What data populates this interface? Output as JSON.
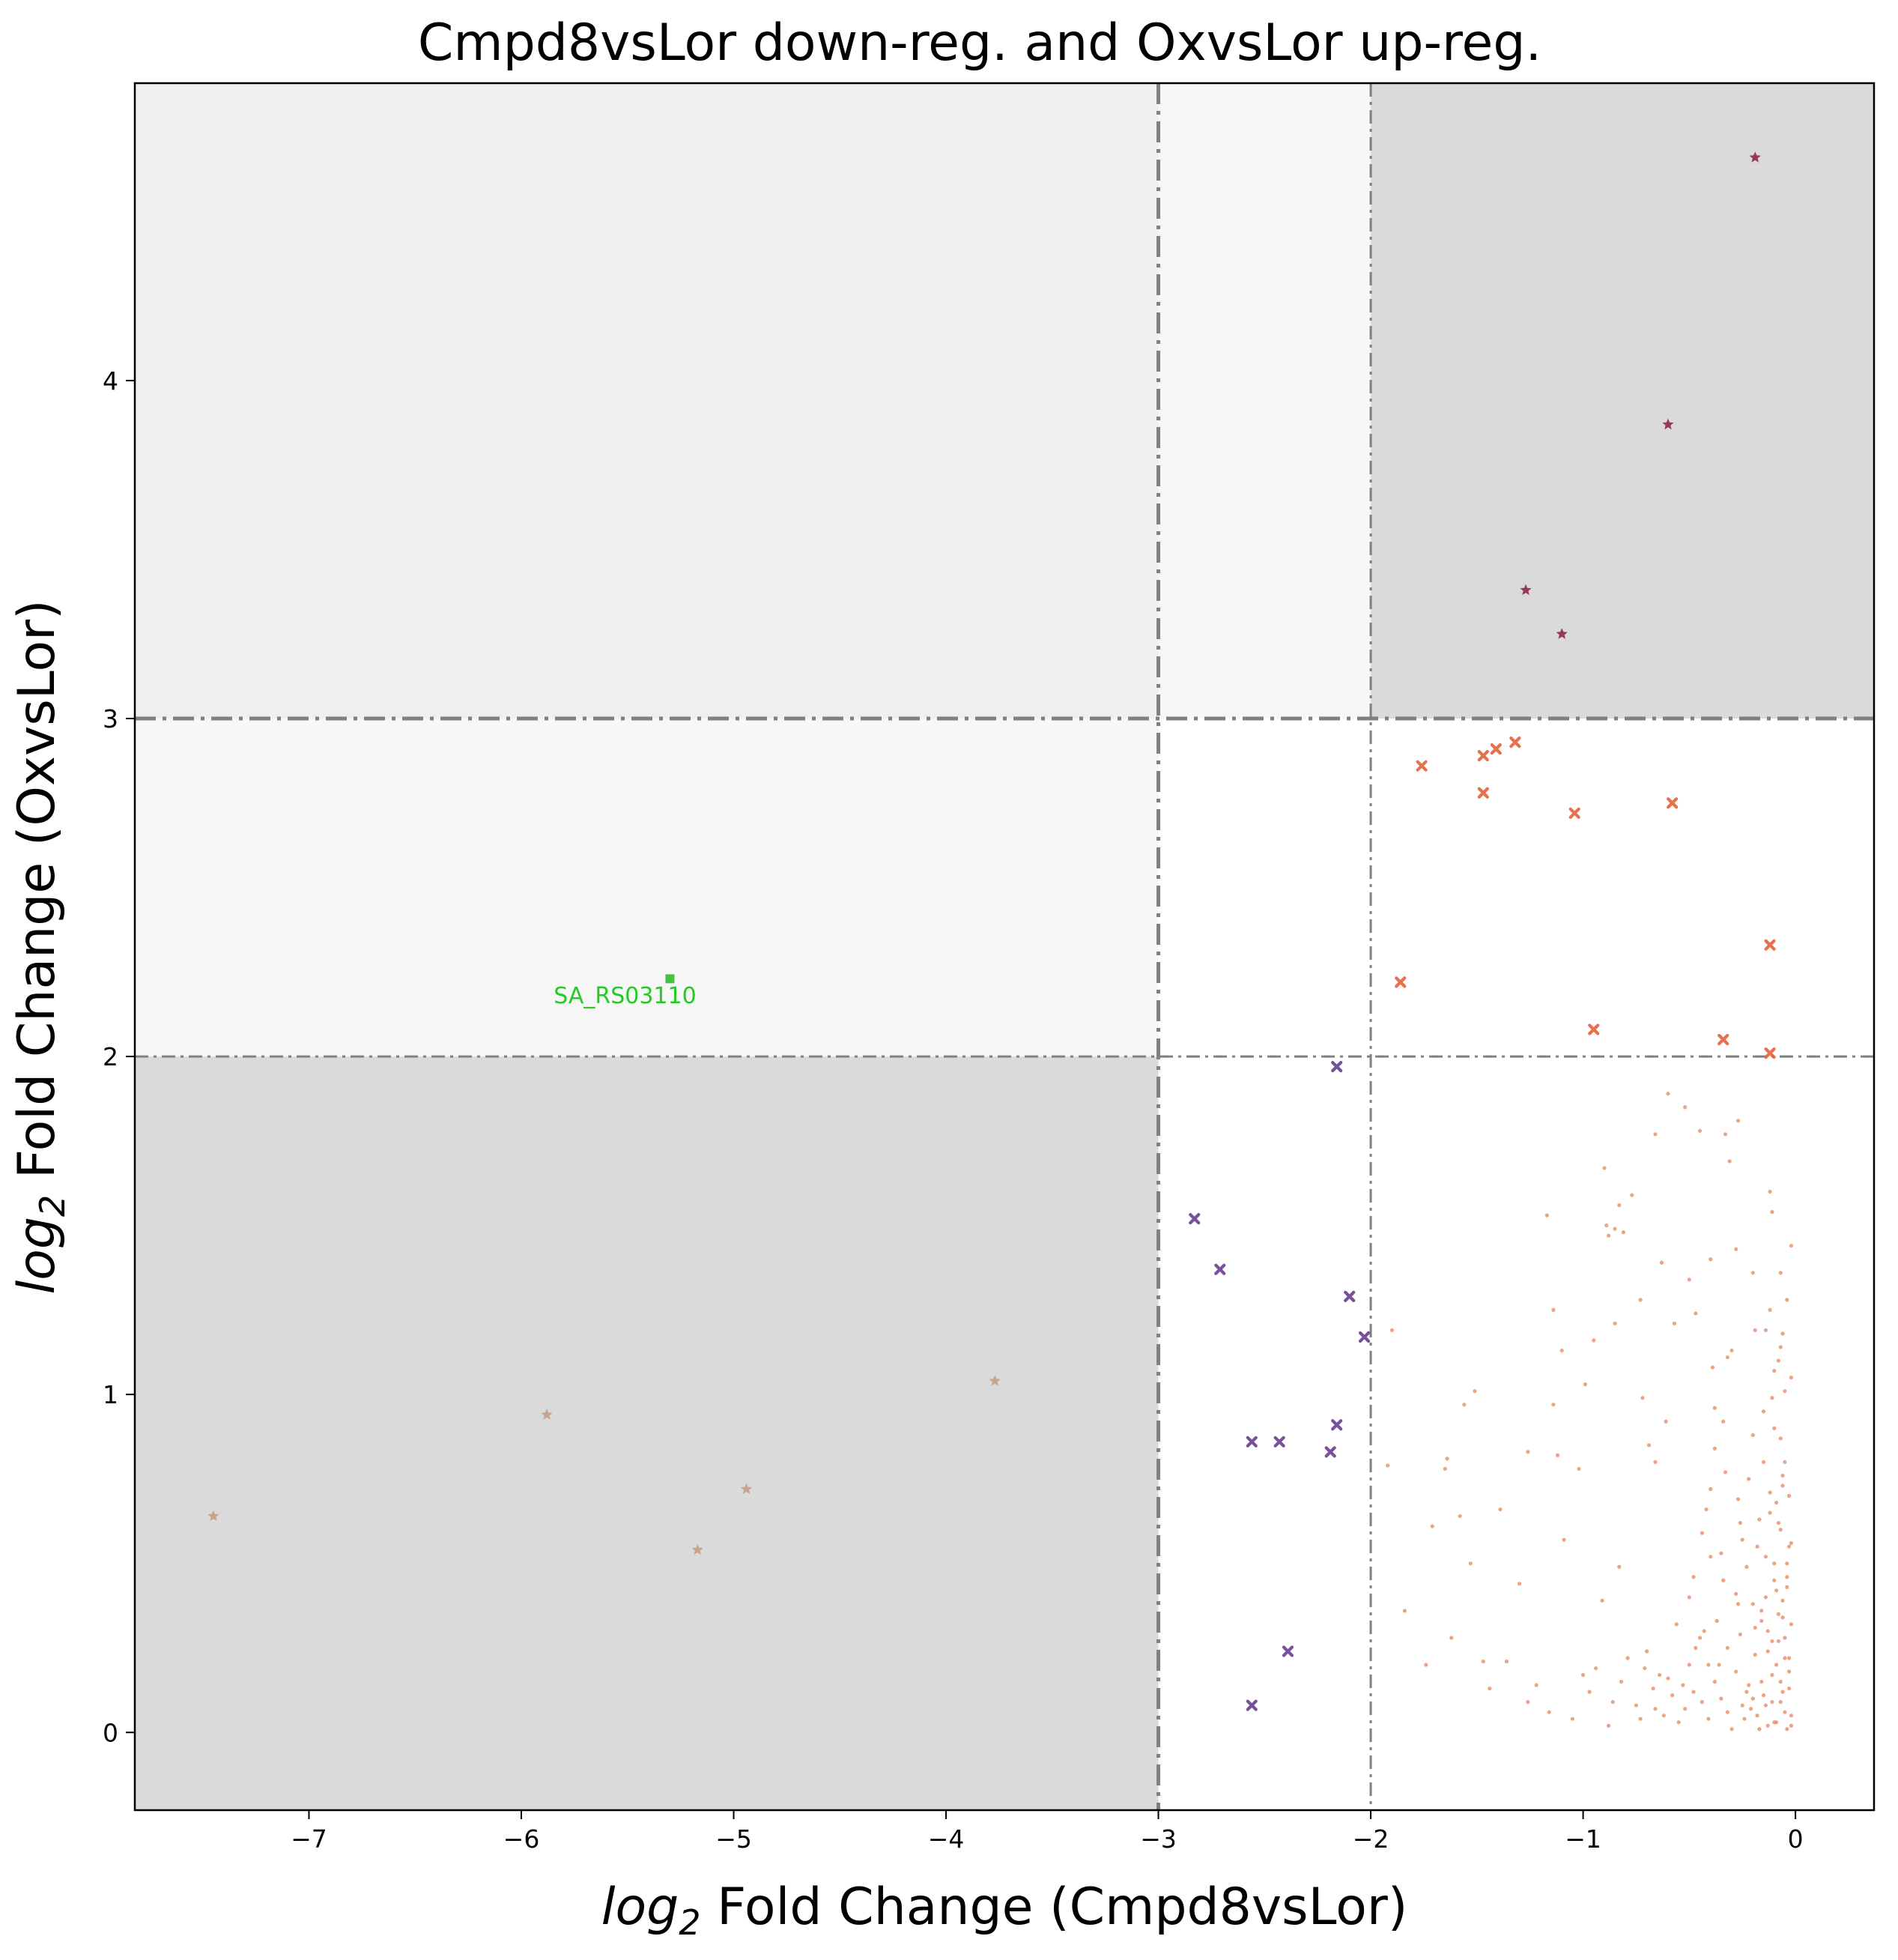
{
  "chart_data": {
    "type": "scatter",
    "title": "Cmpd8vsLor down-reg. and OxvsLor up-reg.",
    "xlabel": {
      "prefix": "log",
      "sub": "2",
      "rest": " Fold Change (Cmpd8vsLor)"
    },
    "ylabel": {
      "prefix": "log",
      "sub": "2",
      "rest": " Fold Change (OxvsLor)"
    },
    "xlim": [
      -7.82,
      0.37
    ],
    "ylim": [
      -0.23,
      4.88
    ],
    "xticks": [
      {
        "value": -7,
        "label": "−7"
      },
      {
        "value": -6,
        "label": "−6"
      },
      {
        "value": -5,
        "label": "−5"
      },
      {
        "value": -4,
        "label": "−4"
      },
      {
        "value": -3,
        "label": "−3"
      },
      {
        "value": -2,
        "label": "−2"
      },
      {
        "value": -1,
        "label": "−1"
      },
      {
        "value": 0,
        "label": "0"
      }
    ],
    "yticks": [
      {
        "value": 0,
        "label": "0"
      },
      {
        "value": 1,
        "label": "1"
      },
      {
        "value": 2,
        "label": "2"
      },
      {
        "value": 3,
        "label": "3"
      },
      {
        "value": 4,
        "label": "4"
      }
    ],
    "grid": false,
    "regions": [
      {
        "x": [
          -7.82,
          -3
        ],
        "y": [
          3,
          4.88
        ],
        "color": "#efefef"
      },
      {
        "x": [
          -3,
          -2
        ],
        "y": [
          3,
          4.88
        ],
        "color": "#f7f7f7"
      },
      {
        "x": [
          -2,
          0.37
        ],
        "y": [
          3,
          4.88
        ],
        "color": "#dadada"
      },
      {
        "x": [
          -7.82,
          -3
        ],
        "y": [
          2,
          3
        ],
        "color": "#f7f7f7"
      },
      {
        "x": [
          -7.82,
          -3
        ],
        "y": [
          -0.23,
          2
        ],
        "color": "#dadada"
      }
    ],
    "thresholds": {
      "vertical": [
        {
          "x": -3,
          "style": "thick"
        },
        {
          "x": -2,
          "style": "thin"
        }
      ],
      "horizontal": [
        {
          "y": 3,
          "style": "thick"
        },
        {
          "y": 2,
          "style": "thin"
        }
      ],
      "color": "#808080"
    },
    "series": [
      {
        "marker": "star",
        "color": "#8b1f3d",
        "points": [
          [
            -0.19,
            4.66
          ],
          [
            -0.6,
            3.87
          ],
          [
            -1.27,
            3.38
          ],
          [
            -1.1,
            3.25
          ]
        ]
      },
      {
        "marker": "x",
        "color": "#e4603a",
        "points": [
          [
            -1.76,
            2.86
          ],
          [
            -1.47,
            2.89
          ],
          [
            -1.41,
            2.91
          ],
          [
            -1.32,
            2.93
          ],
          [
            -1.47,
            2.78
          ],
          [
            -1.04,
            2.72
          ],
          [
            -0.58,
            2.75
          ],
          [
            -0.12,
            2.33
          ],
          [
            -1.86,
            2.22
          ],
          [
            -0.95,
            2.08
          ],
          [
            -0.34,
            2.05
          ],
          [
            -0.12,
            2.01
          ]
        ]
      },
      {
        "marker": "x",
        "color": "#6a3d8f",
        "points": [
          [
            -2.16,
            1.97
          ],
          [
            -2.83,
            1.52
          ],
          [
            -2.71,
            1.37
          ],
          [
            -2.1,
            1.29
          ],
          [
            -2.03,
            1.17
          ],
          [
            -2.16,
            0.91
          ],
          [
            -2.56,
            0.86
          ],
          [
            -2.43,
            0.86
          ],
          [
            -2.19,
            0.83
          ],
          [
            -2.39,
            0.24
          ],
          [
            -2.56,
            0.08
          ]
        ]
      },
      {
        "marker": "star",
        "color": "#c49a7e",
        "points": [
          [
            -7.45,
            0.64
          ],
          [
            -5.88,
            0.94
          ],
          [
            -3.77,
            1.04
          ],
          [
            -4.94,
            0.72
          ],
          [
            -5.17,
            0.54
          ]
        ]
      },
      {
        "marker": "square",
        "color": "#22bb22",
        "points": [
          [
            -5.3,
            2.23
          ]
        ]
      },
      {
        "marker": "dot",
        "color": "#e8865a",
        "points": [
          [
            -0.6,
            1.89
          ],
          [
            -0.52,
            1.85
          ],
          [
            -0.45,
            1.78
          ],
          [
            -0.66,
            1.77
          ],
          [
            -0.33,
            1.77
          ],
          [
            -0.27,
            1.81
          ],
          [
            -0.31,
            1.69
          ],
          [
            -0.9,
            1.67
          ],
          [
            -0.77,
            1.59
          ],
          [
            -0.12,
            1.6
          ],
          [
            -0.83,
            1.56
          ],
          [
            -1.17,
            1.53
          ],
          [
            -0.89,
            1.5
          ],
          [
            -0.85,
            1.49
          ],
          [
            -0.81,
            1.48
          ],
          [
            -0.88,
            1.47
          ],
          [
            -0.11,
            1.54
          ],
          [
            -0.02,
            1.44
          ],
          [
            -0.28,
            1.43
          ],
          [
            -0.4,
            1.4
          ],
          [
            -0.63,
            1.39
          ],
          [
            -0.2,
            1.36
          ],
          [
            -0.07,
            1.36
          ],
          [
            -0.5,
            1.34
          ],
          [
            -0.73,
            1.28
          ],
          [
            -0.04,
            1.28
          ],
          [
            -0.12,
            1.25
          ],
          [
            -1.14,
            1.25
          ],
          [
            -0.47,
            1.24
          ],
          [
            -0.85,
            1.21
          ],
          [
            -0.57,
            1.21
          ],
          [
            -0.19,
            1.19
          ],
          [
            -0.14,
            1.19
          ],
          [
            -0.06,
            1.18
          ],
          [
            -1.9,
            1.19
          ],
          [
            -0.95,
            1.16
          ],
          [
            -0.07,
            1.14
          ],
          [
            -1.1,
            1.13
          ],
          [
            -0.3,
            1.13
          ],
          [
            -0.32,
            1.11
          ],
          [
            -0.39,
            1.08
          ],
          [
            -0.1,
            1.07
          ],
          [
            -0.99,
            1.03
          ],
          [
            -1.51,
            1.01
          ],
          [
            -0.05,
            1.01
          ],
          [
            -0.72,
            0.99
          ],
          [
            -0.11,
            0.99
          ],
          [
            -1.14,
            0.97
          ],
          [
            -1.56,
            0.97
          ],
          [
            -0.38,
            0.96
          ],
          [
            -0.61,
            0.92
          ],
          [
            -0.34,
            0.92
          ],
          [
            -0.2,
            0.88
          ],
          [
            -0.07,
            0.87
          ],
          [
            -0.69,
            0.85
          ],
          [
            -0.38,
            0.84
          ],
          [
            -1.26,
            0.83
          ],
          [
            -1.12,
            0.82
          ],
          [
            -1.64,
            0.81
          ],
          [
            -0.66,
            0.8
          ],
          [
            -1.92,
            0.79
          ],
          [
            -1.02,
            0.78
          ],
          [
            -1.65,
            0.78
          ],
          [
            -0.33,
            0.77
          ],
          [
            -0.22,
            0.75
          ],
          [
            -0.06,
            0.73
          ],
          [
            -0.4,
            0.72
          ],
          [
            -0.27,
            0.69
          ],
          [
            -0.09,
            0.68
          ],
          [
            -0.42,
            0.66
          ],
          [
            -1.39,
            0.66
          ],
          [
            -1.58,
            0.64
          ],
          [
            -1.71,
            0.61
          ],
          [
            -0.17,
            0.63
          ],
          [
            -0.44,
            0.59
          ],
          [
            -0.25,
            0.57
          ],
          [
            -1.09,
            0.57
          ],
          [
            -0.03,
            0.55
          ],
          [
            -0.35,
            0.53
          ],
          [
            -0.14,
            0.52
          ],
          [
            -1.53,
            0.5
          ],
          [
            -0.23,
            0.49
          ],
          [
            -0.83,
            0.49
          ],
          [
            -0.48,
            0.46
          ],
          [
            -0.1,
            0.45
          ],
          [
            -1.3,
            0.44
          ],
          [
            -0.04,
            0.43
          ],
          [
            -0.28,
            0.41
          ],
          [
            -0.5,
            0.4
          ],
          [
            -0.91,
            0.39
          ],
          [
            -0.2,
            0.38
          ],
          [
            -0.16,
            0.36
          ],
          [
            -1.84,
            0.36
          ],
          [
            -0.06,
            0.34
          ],
          [
            -0.37,
            0.33
          ],
          [
            -0.56,
            0.32
          ],
          [
            -0.13,
            0.3
          ],
          [
            -0.26,
            0.29
          ],
          [
            -0.45,
            0.28
          ],
          [
            -1.62,
            0.28
          ],
          [
            -0.08,
            0.27
          ],
          [
            -0.32,
            0.25
          ],
          [
            -0.7,
            0.24
          ],
          [
            -0.19,
            0.23
          ],
          [
            -0.05,
            0.22
          ],
          [
            -1.36,
            0.21
          ],
          [
            -1.47,
            0.21
          ],
          [
            -0.41,
            0.2
          ],
          [
            -1.74,
            0.2
          ],
          [
            -0.94,
            0.19
          ],
          [
            -0.28,
            0.18
          ],
          [
            -0.11,
            0.17
          ],
          [
            -0.6,
            0.16
          ],
          [
            -0.82,
            0.15
          ],
          [
            -0.22,
            0.14
          ],
          [
            -0.03,
            0.13
          ],
          [
            -0.48,
            0.12
          ],
          [
            -0.15,
            0.11
          ],
          [
            -0.35,
            0.1
          ],
          [
            -0.07,
            0.09
          ],
          [
            -0.25,
            0.08
          ],
          [
            -0.66,
            0.07
          ],
          [
            -1.16,
            0.06
          ],
          [
            -0.18,
            0.05
          ],
          [
            -0.41,
            0.04
          ],
          [
            -0.09,
            0.03
          ],
          [
            -0.88,
            0.02
          ],
          [
            -0.13,
            0.02
          ],
          [
            -0.3,
            0.01
          ],
          [
            -0.04,
            0.01
          ],
          [
            -0.55,
            0.03
          ],
          [
            -0.02,
            0.05
          ],
          [
            -0.21,
            0.07
          ],
          [
            -0.11,
            0.09
          ],
          [
            -0.06,
            0.12
          ],
          [
            -0.16,
            0.15
          ],
          [
            -0.03,
            0.18
          ],
          [
            -0.09,
            0.2
          ],
          [
            -0.13,
            0.24
          ],
          [
            -0.05,
            0.28
          ],
          [
            -0.02,
            0.32
          ],
          [
            -0.08,
            0.35
          ],
          [
            -0.14,
            0.4
          ],
          [
            -0.04,
            0.46
          ],
          [
            -0.1,
            0.5
          ],
          [
            -0.02,
            0.56
          ],
          [
            -0.07,
            0.6
          ],
          [
            -0.12,
            0.65
          ],
          [
            -0.03,
            0.7
          ],
          [
            -0.06,
            0.76
          ],
          [
            -0.15,
            0.8
          ],
          [
            -0.23,
            0.12
          ],
          [
            -0.32,
            0.06
          ],
          [
            -0.38,
            0.15
          ],
          [
            -0.44,
            0.09
          ],
          [
            -0.5,
            0.2
          ],
          [
            -0.58,
            0.11
          ],
          [
            -0.64,
            0.17
          ],
          [
            -0.75,
            0.08
          ],
          [
            -0.79,
            0.22
          ],
          [
            -0.97,
            0.12
          ],
          [
            -1.05,
            0.04
          ],
          [
            -1.22,
            0.14
          ],
          [
            -0.19,
            0.31
          ],
          [
            -0.27,
            0.38
          ],
          [
            -0.34,
            0.45
          ],
          [
            -0.4,
            0.52
          ],
          [
            -0.47,
            0.25
          ],
          [
            -0.53,
            0.14
          ],
          [
            -0.62,
            0.05
          ],
          [
            -0.71,
            0.19
          ],
          [
            -0.86,
            0.09
          ],
          [
            -0.02,
            0.02
          ],
          [
            -0.05,
            0.06
          ],
          [
            -0.1,
            0.03
          ],
          [
            -0.14,
            0.08
          ],
          [
            -0.17,
            0.01
          ],
          [
            -0.2,
            0.1
          ],
          [
            -0.24,
            0.04
          ],
          [
            -0.07,
            0.15
          ],
          [
            -0.03,
            0.22
          ],
          [
            -0.11,
            0.27
          ],
          [
            -0.16,
            0.33
          ],
          [
            -0.06,
            0.39
          ],
          [
            -0.09,
            0.42
          ],
          [
            -0.04,
            0.5
          ],
          [
            -0.18,
            0.55
          ],
          [
            -0.08,
            0.62
          ],
          [
            -0.12,
            0.71
          ],
          [
            -0.05,
            0.8
          ],
          [
            -0.1,
            0.9
          ],
          [
            -0.02,
            1.05
          ],
          [
            -0.08,
            1.1
          ],
          [
            -0.15,
            0.95
          ],
          [
            -0.26,
            0.62
          ],
          [
            -0.36,
            0.2
          ],
          [
            -0.43,
            0.3
          ],
          [
            -0.52,
            0.07
          ],
          [
            -0.67,
            0.13
          ],
          [
            -0.73,
            0.04
          ],
          [
            -1.0,
            0.17
          ],
          [
            -1.26,
            0.09
          ],
          [
            -1.44,
            0.13
          ]
        ]
      }
    ],
    "annotations": [
      {
        "text": "SA_RS03110",
        "x": -5.3,
        "y": 2.18,
        "color": "#22cc22"
      }
    ]
  }
}
